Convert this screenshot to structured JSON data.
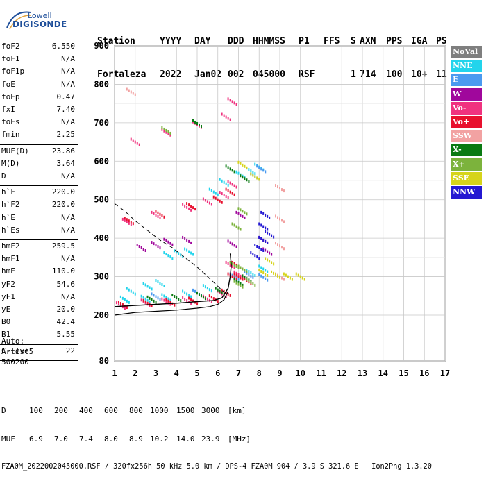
{
  "logo": {
    "line1": "Lowell",
    "line2": "DIGISONDE"
  },
  "header": {
    "labels": [
      "Station",
      "YYYY",
      "DAY",
      "DDD",
      "HHMMSS",
      "P1",
      "FFS",
      "S",
      "AXN",
      "PPS",
      "IGA",
      "PS"
    ],
    "values": [
      "Fortaleza",
      "2022",
      "Jan02",
      "002",
      "045000",
      "RSF",
      "",
      "1",
      "714",
      "100",
      "10+",
      "11"
    ]
  },
  "params": [
    {
      "name": "foF2",
      "value": "6.550"
    },
    {
      "name": "foF1",
      "value": "N/A"
    },
    {
      "name": "foF1p",
      "value": "N/A"
    },
    {
      "name": "foE",
      "value": "N/A"
    },
    {
      "name": "foEp",
      "value": "0.47"
    },
    {
      "name": "fxI",
      "value": "7.40"
    },
    {
      "name": "foEs",
      "value": "N/A"
    },
    {
      "name": "fmin",
      "value": "2.25"
    },
    {
      "name": "MUF(D)",
      "value": "23.86"
    },
    {
      "name": "M(D)",
      "value": "3.64"
    },
    {
      "name": "D",
      "value": "N/A"
    },
    {
      "name": "h`F",
      "value": "220.0"
    },
    {
      "name": "h`F2",
      "value": "220.0"
    },
    {
      "name": "h`E",
      "value": "N/A"
    },
    {
      "name": "h`Es",
      "value": "N/A"
    },
    {
      "name": "hmF2",
      "value": "259.5"
    },
    {
      "name": "hmF1",
      "value": "N/A"
    },
    {
      "name": "hmE",
      "value": "110.0"
    },
    {
      "name": "yF2",
      "value": "54.6"
    },
    {
      "name": "yF1",
      "value": "N/A"
    },
    {
      "name": "yE",
      "value": "20.0"
    },
    {
      "name": "B0",
      "value": "42.4"
    },
    {
      "name": "B1",
      "value": "5.55"
    },
    {
      "name": "C-level",
      "value": "22"
    }
  ],
  "auto": {
    "label": "Auto:",
    "program": "Artist5",
    "version": "500200"
  },
  "legend": [
    {
      "label": "NoVal",
      "color": "#7f7f7f"
    },
    {
      "label": "NNE",
      "color": "#22d4ec"
    },
    {
      "label": "E",
      "color": "#4a9af0"
    },
    {
      "label": "W",
      "color": "#a0079c"
    },
    {
      "label": "Vo-",
      "color": "#f0327f"
    },
    {
      "label": "Vo+",
      "color": "#e8102e"
    },
    {
      "label": "SSW",
      "color": "#f2a2a2"
    },
    {
      "label": "X-",
      "color": "#0a7a12"
    },
    {
      "label": "X+",
      "color": "#7cb33c"
    },
    {
      "label": "SSE",
      "color": "#d6d41a"
    },
    {
      "label": "NNW",
      "color": "#2418d2"
    }
  ],
  "chart_data": {
    "type": "scatter",
    "xlim": [
      1,
      17
    ],
    "ylim": [
      80,
      900
    ],
    "xticks": [
      1,
      2,
      3,
      4,
      5,
      6,
      7,
      8,
      9,
      10,
      11,
      12,
      13,
      14,
      15,
      16,
      17
    ],
    "yticks": [
      80,
      200,
      300,
      400,
      500,
      600,
      700,
      800,
      900
    ],
    "grid": true,
    "legend_position": "right",
    "series": [
      {
        "name": "NNE",
        "color": "#22d4ec",
        "points": [
          [
            1.5,
            240
          ],
          [
            2.5,
            242
          ],
          [
            3.5,
            246
          ],
          [
            4.5,
            255
          ],
          [
            5.5,
            270
          ],
          [
            1.8,
            262
          ],
          [
            2.6,
            275
          ],
          [
            3.2,
            283
          ],
          [
            3.6,
            355
          ],
          [
            4.1,
            360
          ],
          [
            4.6,
            365
          ],
          [
            5.8,
            520
          ],
          [
            6.3,
            545
          ],
          [
            7.1,
            565
          ],
          [
            7.6,
            575
          ],
          [
            8.0,
            585
          ],
          [
            7.6,
            310
          ],
          [
            8.2,
            320
          ]
        ]
      },
      {
        "name": "E",
        "color": "#4a9af0",
        "points": [
          [
            3.0,
            248
          ],
          [
            5.0,
            258
          ],
          [
            6.8,
            300
          ],
          [
            7.5,
            305
          ],
          [
            8.2,
            298
          ],
          [
            7.8,
            560
          ],
          [
            8.1,
            580
          ]
        ]
      },
      {
        "name": "W",
        "color": "#a0079c",
        "points": [
          [
            2.3,
            375
          ],
          [
            3.0,
            382
          ],
          [
            3.6,
            390
          ],
          [
            4.5,
            395
          ],
          [
            6.7,
            385
          ],
          [
            7.1,
            460
          ],
          [
            8.2,
            395
          ],
          [
            8.4,
            365
          ]
        ]
      },
      {
        "name": "Vo-",
        "color": "#f0327f",
        "points": [
          [
            1.3,
            225
          ],
          [
            2.5,
            232
          ],
          [
            3.5,
            235
          ],
          [
            4.5,
            238
          ],
          [
            5.5,
            242
          ],
          [
            6.2,
            255
          ],
          [
            1.6,
            442
          ],
          [
            3.0,
            460
          ],
          [
            4.5,
            480
          ],
          [
            5.5,
            495
          ],
          [
            6.3,
            512
          ],
          [
            6.7,
            540
          ],
          [
            6.6,
            330
          ],
          [
            7.0,
            305
          ],
          [
            2.0,
            650
          ],
          [
            3.5,
            675
          ],
          [
            5.0,
            695
          ],
          [
            6.4,
            715
          ],
          [
            6.7,
            755
          ]
        ]
      },
      {
        "name": "Vo+",
        "color": "#e8102e",
        "points": [
          [
            1.4,
            227
          ],
          [
            2.6,
            231
          ],
          [
            3.7,
            233
          ],
          [
            4.8,
            237
          ],
          [
            5.8,
            243
          ],
          [
            6.4,
            258
          ],
          [
            6.7,
            300
          ],
          [
            6.9,
            330
          ],
          [
            1.7,
            445
          ],
          [
            3.2,
            462
          ],
          [
            4.7,
            483
          ],
          [
            6.0,
            500
          ],
          [
            6.6,
            520
          ],
          [
            7.0,
            300
          ],
          [
            7.4,
            290
          ]
        ]
      },
      {
        "name": "SSW",
        "color": "#f2a2a2",
        "points": [
          [
            9.0,
            300
          ],
          [
            9.0,
            380
          ],
          [
            9.0,
            450
          ],
          [
            9.0,
            530
          ],
          [
            1.8,
            780
          ]
        ]
      },
      {
        "name": "X-",
        "color": "#0a7a12",
        "points": [
          [
            2.8,
            240
          ],
          [
            4.0,
            245
          ],
          [
            5.2,
            250
          ],
          [
            6.1,
            262
          ],
          [
            7.0,
            285
          ],
          [
            7.4,
            295
          ],
          [
            5.0,
            698
          ],
          [
            6.6,
            580
          ],
          [
            7.3,
            555
          ]
        ]
      },
      {
        "name": "X+",
        "color": "#7cb33c",
        "points": [
          [
            7.0,
            280
          ],
          [
            7.6,
            285
          ],
          [
            6.8,
            330
          ],
          [
            7.2,
            320
          ],
          [
            3.5,
            680
          ],
          [
            6.9,
            430
          ],
          [
            7.2,
            470
          ]
        ]
      },
      {
        "name": "SSE",
        "color": "#d6d41a",
        "points": [
          [
            8.2,
            310
          ],
          [
            8.8,
            305
          ],
          [
            9.4,
            300
          ],
          [
            10.0,
            300
          ],
          [
            8.5,
            340
          ],
          [
            7.2,
            590
          ],
          [
            7.8,
            560
          ]
        ]
      },
      {
        "name": "NNW",
        "color": "#2418d2",
        "points": [
          [
            7.8,
            355
          ],
          [
            8.0,
            375
          ],
          [
            8.2,
            395
          ],
          [
            8.5,
            410
          ],
          [
            8.2,
            430
          ],
          [
            8.3,
            460
          ]
        ]
      }
    ],
    "profile_curve": [
      [
        1.0,
        200
      ],
      [
        2.0,
        207
      ],
      [
        3.0,
        210
      ],
      [
        4.0,
        213
      ],
      [
        5.0,
        218
      ],
      [
        5.6,
        222
      ],
      [
        6.0,
        228
      ],
      [
        6.3,
        240
      ],
      [
        6.5,
        262
      ]
    ],
    "dashed_curve": [
      [
        1.0,
        490
      ],
      [
        1.5,
        470
      ],
      [
        2.0,
        445
      ],
      [
        2.6,
        420
      ],
      [
        3.2,
        395
      ],
      [
        3.8,
        375
      ],
      [
        4.4,
        350
      ],
      [
        5.0,
        325
      ],
      [
        5.6,
        295
      ],
      [
        6.3,
        260
      ]
    ],
    "fit_curve": [
      [
        1.0,
        222
      ],
      [
        2.0,
        225
      ],
      [
        3.0,
        228
      ],
      [
        4.0,
        231
      ],
      [
        5.0,
        235
      ],
      [
        5.8,
        238
      ],
      [
        6.2,
        245
      ],
      [
        6.5,
        270
      ],
      [
        6.6,
        300
      ],
      [
        6.65,
        330
      ],
      [
        6.6,
        360
      ]
    ]
  },
  "footer": {
    "d_label": "D",
    "d_values": [
      "100",
      "200",
      "400",
      "600",
      "800",
      "1000",
      "1500",
      "3000"
    ],
    "d_unit": "[km]",
    "muf_label": "MUF",
    "muf_values": [
      "6.9",
      "7.0",
      "7.4",
      "8.0",
      "8.9",
      "10.2",
      "14.0",
      "23.9"
    ],
    "muf_unit": "[MHz]",
    "file_line": "FZA0M_2022002045000.RSF / 320fx256h 50 kHz 5.0 km / DPS-4 FZA0M 904 / 3.9 S 321.6 E   Ion2Png 1.3.20"
  }
}
